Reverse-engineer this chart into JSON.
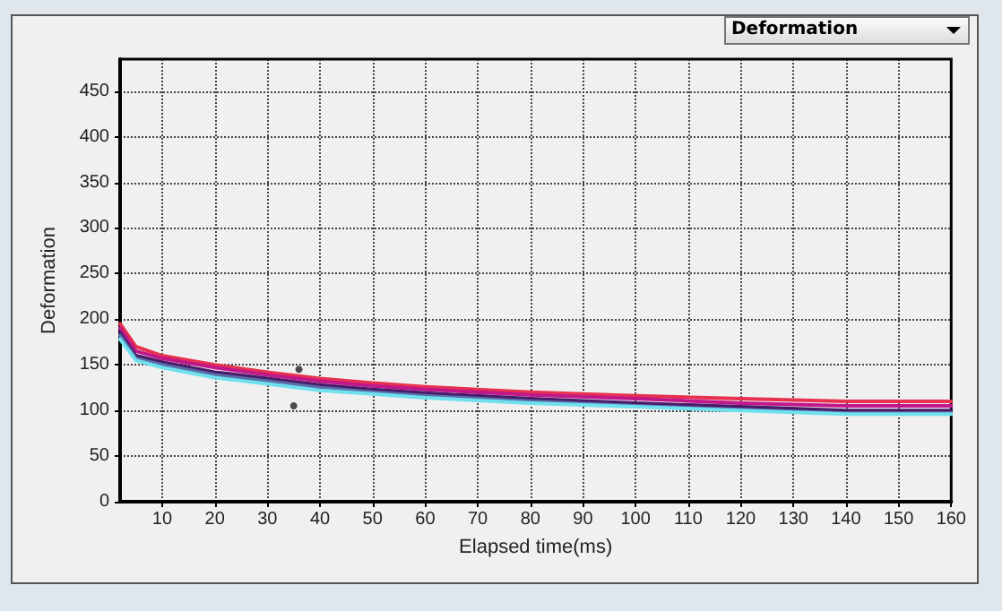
{
  "chart_data": {
    "type": "line",
    "xlabel": "Elapsed time(ms)",
    "ylabel": "Deformation",
    "annotations": [
      "Deformation"
    ],
    "xlim": [
      2,
      160
    ],
    "xticks": [
      10,
      20,
      30,
      40,
      50,
      60,
      70,
      80,
      90,
      100,
      110,
      120,
      130,
      140,
      150,
      160
    ],
    "ylim": [
      0,
      485
    ],
    "yticks": [
      0,
      50,
      100,
      150,
      200,
      250,
      300,
      350,
      400,
      450
    ],
    "grid": true,
    "line_style": "solid",
    "x": [
      2,
      5,
      10,
      20,
      30,
      40,
      50,
      60,
      80,
      100,
      120,
      140,
      160
    ],
    "series": [
      {
        "color": "#e8304f",
        "values": [
          195,
          170,
          160,
          150,
          142,
          135,
          130,
          126,
          120,
          116,
          113,
          110,
          110
        ]
      },
      {
        "color": "#c0188a",
        "values": [
          190,
          165,
          157,
          147,
          139,
          132,
          127,
          123,
          117,
          113,
          108,
          105,
          105
        ]
      },
      {
        "color": "#4a1a6a",
        "values": [
          185,
          160,
          153,
          142,
          135,
          128,
          123,
          119,
          113,
          108,
          104,
          100,
          100
        ]
      },
      {
        "color": "#5a6fa8",
        "values": [
          182,
          157,
          150,
          139,
          132,
          125,
          120,
          116,
          110,
          105,
          101,
          97,
          97
        ]
      },
      {
        "color": "#6fe0ee",
        "values": [
          178,
          155,
          147,
          136,
          129,
          122,
          118,
          114,
          108,
          104,
          100,
          96,
          96
        ]
      },
      {
        "type": "scatter",
        "color": "#222222",
        "x": [
          35,
          36
        ],
        "values": [
          105,
          145
        ]
      }
    ]
  }
}
